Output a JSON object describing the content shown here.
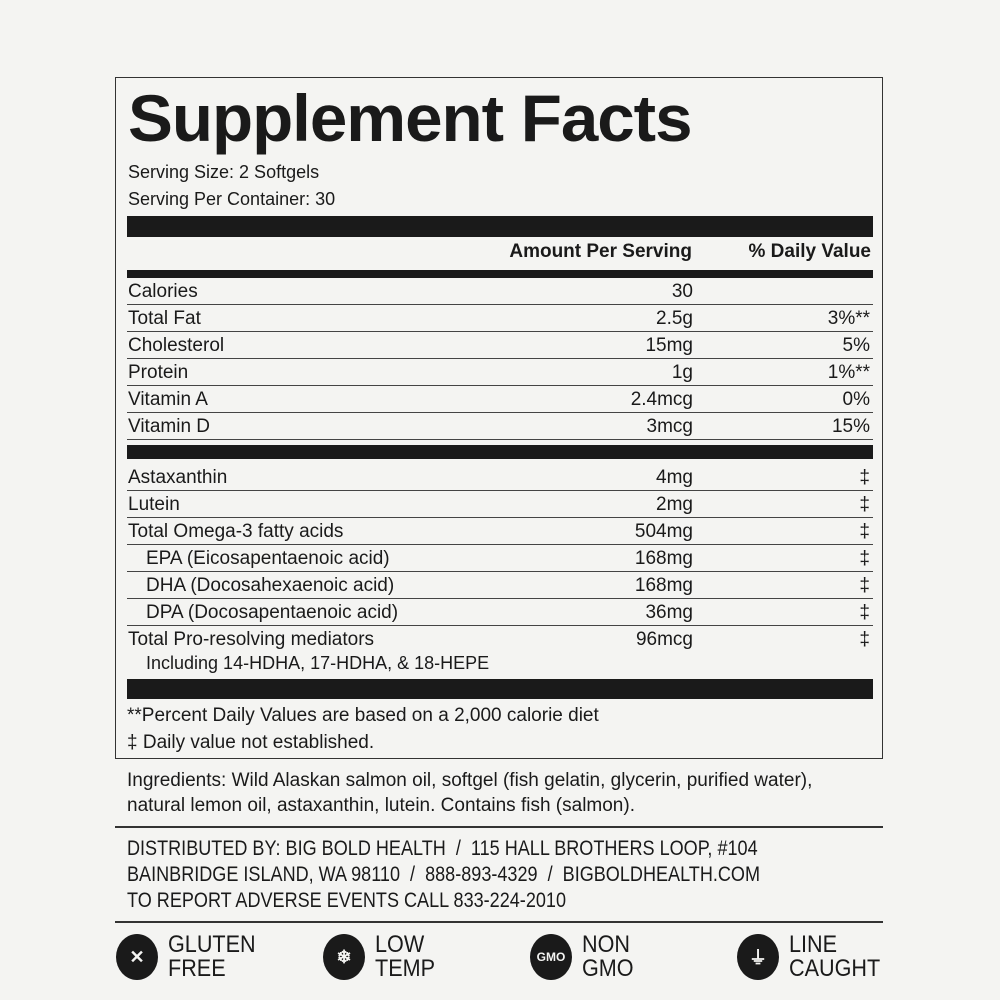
{
  "title": "Supplement Facts",
  "serving_size": "Serving Size: 2 Softgels",
  "servings_per_container": "Serving Per Container: 30",
  "headers": {
    "amount": "Amount Per Serving",
    "dv": "% Daily Value"
  },
  "nutrients": [
    {
      "name": "Calories",
      "amount": "30",
      "dv": ""
    },
    {
      "name": "Total Fat",
      "amount": "2.5g",
      "dv": "3%**"
    },
    {
      "name": "Cholesterol",
      "amount": "15mg",
      "dv": "5%"
    },
    {
      "name": "Protein",
      "amount": "1g",
      "dv": "1%**"
    },
    {
      "name": "Vitamin A",
      "amount": "2.4mcg",
      "dv": "0%"
    },
    {
      "name": "Vitamin D",
      "amount": "3mcg",
      "dv": "15%"
    }
  ],
  "others": [
    {
      "name": "Astaxanthin",
      "amount": "4mg",
      "dv": "‡"
    },
    {
      "name": "Lutein",
      "amount": "2mg",
      "dv": "‡"
    },
    {
      "name": "Total Omega-3 fatty acids",
      "amount": "504mg",
      "dv": "‡"
    },
    {
      "name": "EPA (Eicosapentaenoic acid)",
      "amount": "168mg",
      "dv": "‡"
    },
    {
      "name": "DHA (Docosahexaenoic acid)",
      "amount": "168mg",
      "dv": "‡"
    },
    {
      "name": "DPA (Docosapentaenoic acid)",
      "amount": "36mg",
      "dv": "‡"
    },
    {
      "name": "Total Pro-resolving mediators",
      "amount": "96mcg",
      "dv": "‡"
    }
  ],
  "mediators_note": "Including 14-HDHA, 17-HDHA, & 18-HEPE",
  "footnotes": [
    "**Percent Daily Values are based on a 2,000 calorie diet",
    "‡ Daily value not established."
  ],
  "ingredients": "Ingredients: Wild Alaskan salmon oil, softgel (fish gelatin, glycerin, purified water), natural lemon oil, astaxanthin, lutein. Contains fish (salmon).",
  "distributor": [
    "DISTRIBUTED BY: BIG BOLD HEALTH  /  115 HALL BROTHERS LOOP, #104",
    "BAINBRIDGE ISLAND, WA 98110  /  888-893-4329  /  BIGBOLDHEALTH.COM",
    "TO REPORT ADVERSE EVENTS CALL 833-224-2010"
  ],
  "badges": [
    {
      "icon": "gluten-free-icon",
      "l1": "GLUTEN",
      "l2": "FREE",
      "glyph": "✕"
    },
    {
      "icon": "snowflake-icon",
      "l1": "LOW",
      "l2": "TEMP",
      "glyph": "❄"
    },
    {
      "icon": "non-gmo-icon",
      "l1": "NON",
      "l2": "GMO",
      "glyph": "GMO"
    },
    {
      "icon": "fishing-line-icon",
      "l1": "LINE",
      "l2": "CAUGHT",
      "glyph": "⏚"
    }
  ]
}
